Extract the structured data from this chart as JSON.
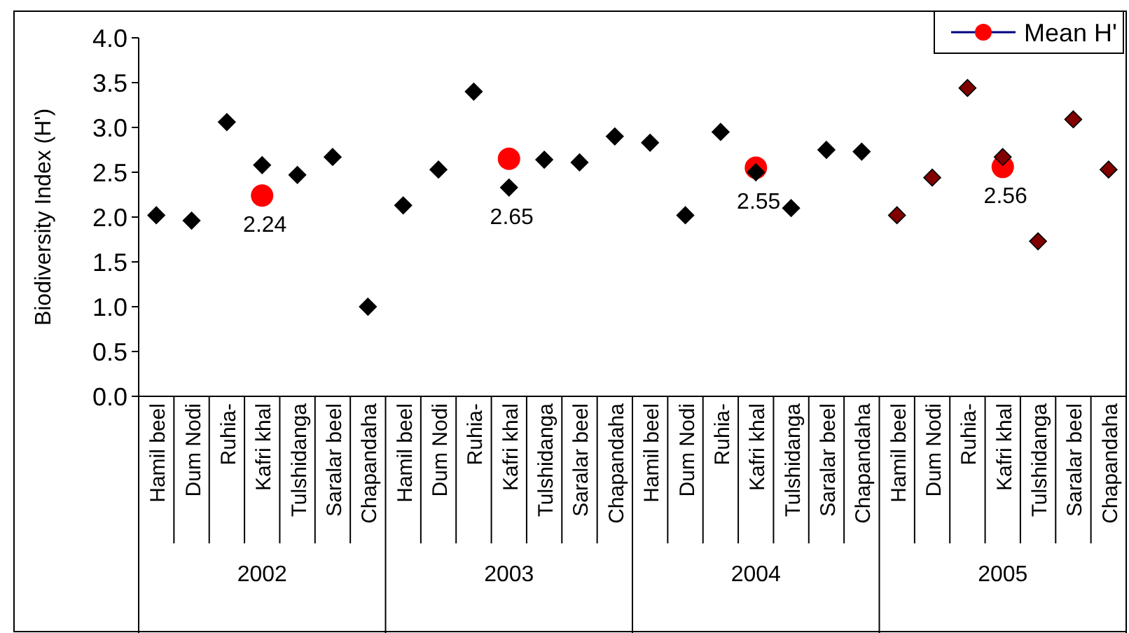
{
  "chart_data": {
    "type": "scatter",
    "ylabel": "Biodiversity Index (H')",
    "categories": [
      "Hamil beel",
      "Dum Nodi",
      "Ruhia-",
      "Kafri khal",
      "Tulshidanga",
      "Saralar beel",
      "Chapandaha",
      "Hamil beel",
      "Dum Nodi",
      "Ruhia-",
      "Kafri khal",
      "Tulshidanga",
      "Saralar beel",
      "Chapandaha",
      "Hamil beel",
      "Dum Nodi",
      "Ruhia-",
      "Kafri khal",
      "Tulshidanga",
      "Saralar beel",
      "Chapandaha",
      "Hamil beel",
      "Dum Nodi",
      "Ruhia-",
      "Kafri khal",
      "Tulshidanga",
      "Saralar beel",
      "Chapandaha"
    ],
    "annotations": [
      "2002",
      "2003",
      "2004",
      "2005"
    ],
    "series": [
      {
        "color": "#000000",
        "marker": "diamond",
        "values": [
          2.02,
          1.96,
          3.06,
          2.58,
          2.47,
          2.67,
          1.0,
          2.13,
          2.53,
          3.4,
          2.33,
          2.64,
          2.61,
          2.9,
          2.83,
          2.02,
          2.95,
          2.5,
          2.1,
          2.75,
          2.73,
          null,
          null,
          null,
          null,
          null,
          null,
          null
        ]
      },
      {
        "color": "#800000",
        "marker": "diamond",
        "values": [
          null,
          null,
          null,
          null,
          null,
          null,
          null,
          null,
          null,
          null,
          null,
          null,
          null,
          null,
          null,
          null,
          null,
          null,
          null,
          null,
          null,
          2.02,
          2.44,
          3.44,
          2.67,
          1.73,
          3.09,
          2.53
        ]
      },
      {
        "name": "Mean H'",
        "color": "#ff0000",
        "marker": "circle",
        "values": [
          null,
          null,
          null,
          2.24,
          null,
          null,
          null,
          null,
          null,
          null,
          2.65,
          null,
          null,
          null,
          null,
          null,
          null,
          2.55,
          null,
          null,
          null,
          null,
          null,
          null,
          2.56,
          null,
          null,
          null
        ],
        "value_labels": [
          null,
          null,
          null,
          "2.24",
          null,
          null,
          null,
          null,
          null,
          null,
          "2.65",
          null,
          null,
          null,
          null,
          null,
          null,
          "2.55",
          null,
          null,
          null,
          null,
          null,
          null,
          "2.56",
          null,
          null,
          null
        ]
      }
    ],
    "ylim": [
      0,
      4
    ],
    "yticks": [
      {
        "value": 0,
        "label": "0.0"
      },
      {
        "value": 0.5,
        "label": "0.5"
      },
      {
        "value": 1,
        "label": "1.0"
      },
      {
        "value": 1.5,
        "label": "1.5"
      },
      {
        "value": 2,
        "label": "2.0"
      },
      {
        "value": 2.5,
        "label": "2.5"
      },
      {
        "value": 3,
        "label": "3.0"
      },
      {
        "value": 3.5,
        "label": "3.5"
      },
      {
        "value": 4,
        "label": "4.0"
      }
    ],
    "legend": "top right",
    "grid": false
  }
}
